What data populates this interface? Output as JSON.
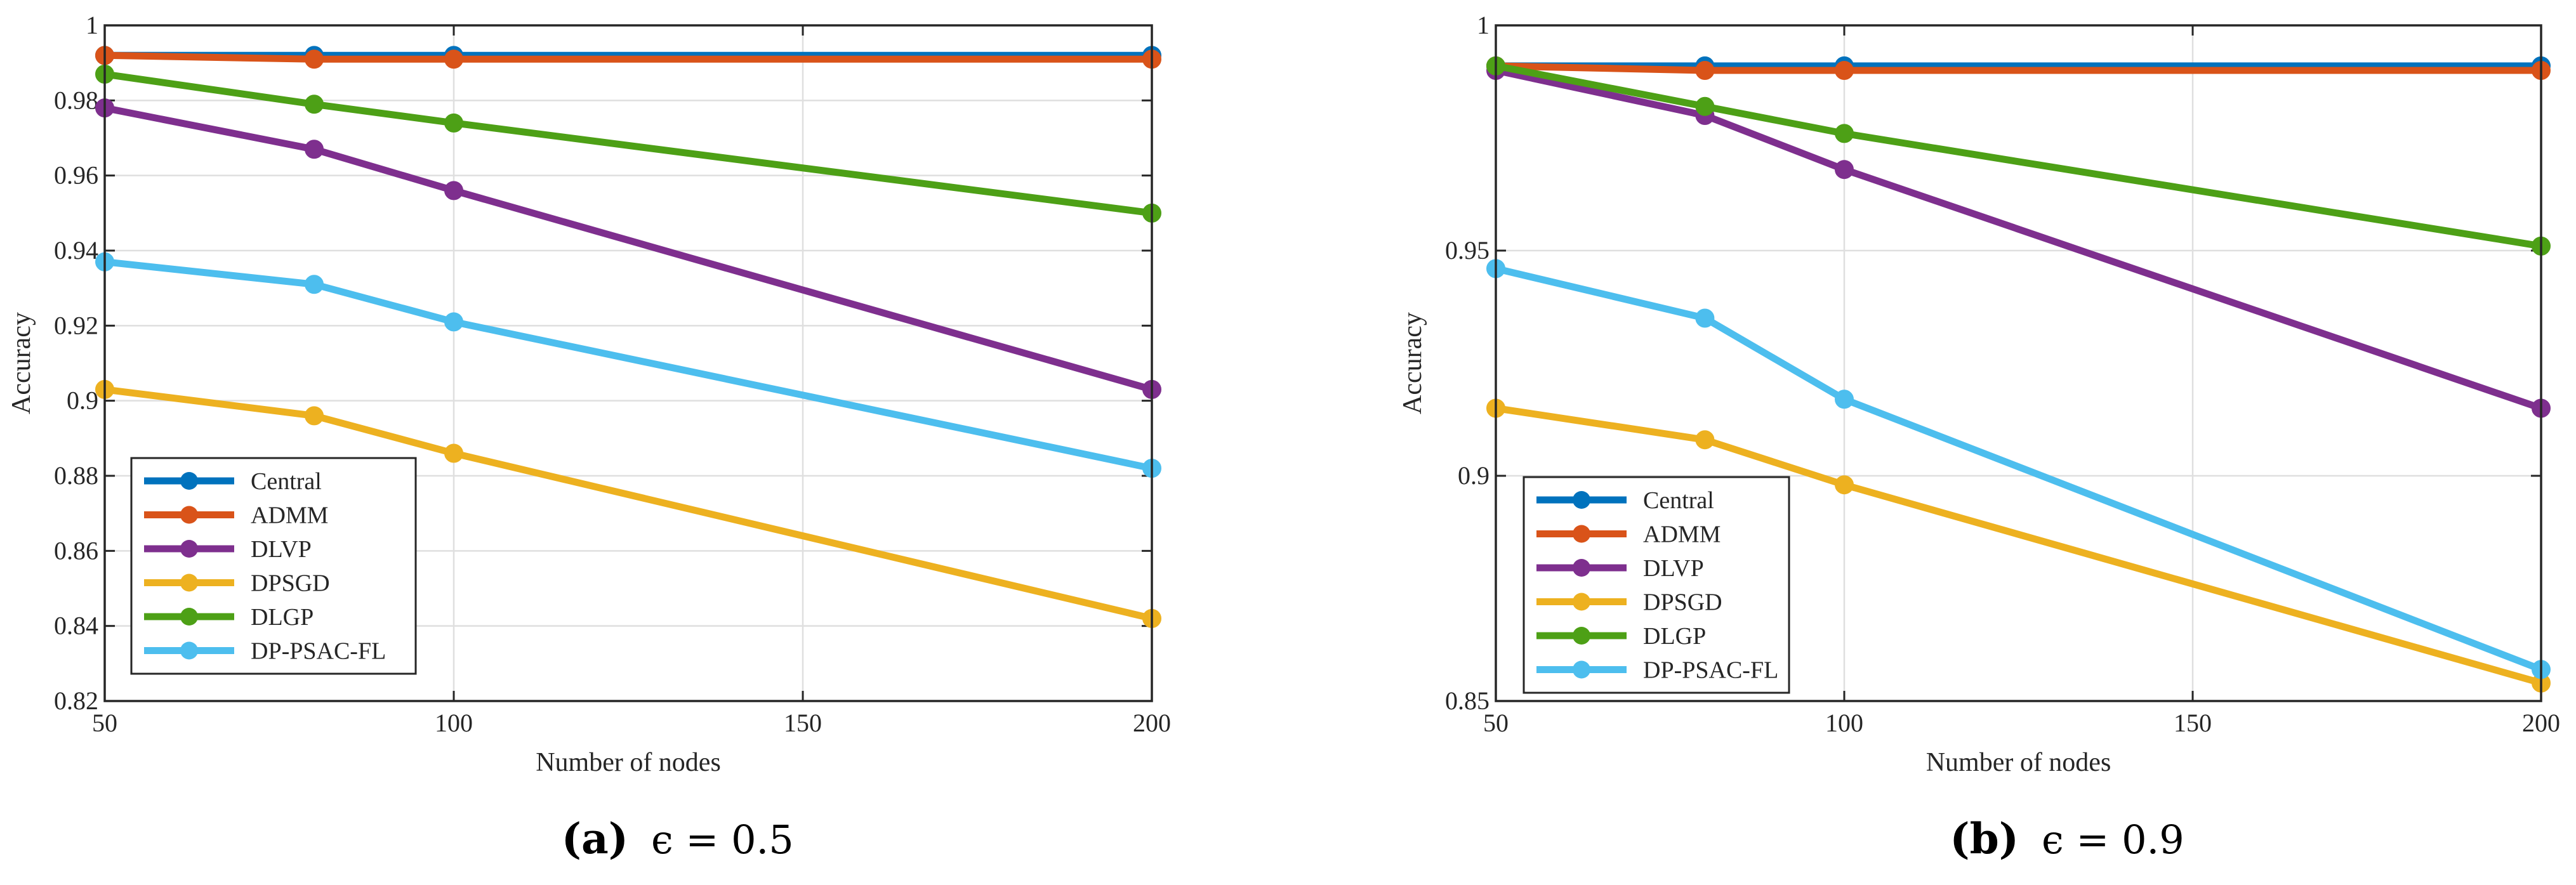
{
  "chart_data": [
    {
      "type": "line",
      "title": "",
      "xlabel": "Number of nodes",
      "ylabel": "Accuracy",
      "xlim": [
        50,
        200
      ],
      "ylim": [
        0.82,
        1
      ],
      "xticks": [
        50,
        100,
        150,
        200
      ],
      "xtick_labels": [
        "50",
        "100",
        "150",
        "200"
      ],
      "yticks": [
        0.82,
        0.84,
        0.86,
        0.88,
        0.9,
        0.92,
        0.94,
        0.96,
        0.98,
        1
      ],
      "ytick_labels": [
        "0.82",
        "0.84",
        "0.86",
        "0.88",
        "0.9",
        "0.92",
        "0.94",
        "0.96",
        "0.98",
        "1"
      ],
      "x": [
        50,
        80,
        100,
        200
      ],
      "grid": true,
      "legend_position": "bottom-left",
      "caption": {
        "letter": "(a)",
        "math": "ϵ = 0.5"
      },
      "series": [
        {
          "name": "Central",
          "color": "#0072BD",
          "values": [
            0.992,
            0.992,
            0.992,
            0.992
          ]
        },
        {
          "name": "ADMM",
          "color": "#D95319",
          "values": [
            0.992,
            0.991,
            0.991,
            0.991
          ]
        },
        {
          "name": "DLVP",
          "color": "#7E2F8E",
          "values": [
            0.978,
            0.967,
            0.956,
            0.903
          ]
        },
        {
          "name": "DPSGD",
          "color": "#EDB120",
          "values": [
            0.903,
            0.896,
            0.886,
            0.842
          ]
        },
        {
          "name": "DLGP",
          "color": "#4DA016",
          "values": [
            0.987,
            0.979,
            0.974,
            0.95
          ]
        },
        {
          "name": "DP-PSAC-FL",
          "color": "#4DBEEE",
          "values": [
            0.937,
            0.931,
            0.921,
            0.882
          ]
        }
      ]
    },
    {
      "type": "line",
      "title": "",
      "xlabel": "Number of nodes",
      "ylabel": "Accuracy",
      "xlim": [
        50,
        200
      ],
      "ylim": [
        0.85,
        1
      ],
      "xticks": [
        50,
        100,
        150,
        200
      ],
      "xtick_labels": [
        "50",
        "100",
        "150",
        "200"
      ],
      "yticks": [
        0.85,
        0.9,
        0.95,
        1
      ],
      "ytick_labels": [
        "0.85",
        "0.9",
        "0.95",
        "1"
      ],
      "x": [
        50,
        80,
        100,
        200
      ],
      "grid": true,
      "legend_position": "bottom-left",
      "caption": {
        "letter": "(b)",
        "math": "ϵ = 0.9"
      },
      "series": [
        {
          "name": "Central",
          "color": "#0072BD",
          "values": [
            0.991,
            0.991,
            0.991,
            0.991
          ]
        },
        {
          "name": "ADMM",
          "color": "#D95319",
          "values": [
            0.991,
            0.99,
            0.99,
            0.99
          ]
        },
        {
          "name": "DLVP",
          "color": "#7E2F8E",
          "values": [
            0.99,
            0.98,
            0.968,
            0.915
          ]
        },
        {
          "name": "DPSGD",
          "color": "#EDB120",
          "values": [
            0.915,
            0.908,
            0.898,
            0.854
          ]
        },
        {
          "name": "DLGP",
          "color": "#4DA016",
          "values": [
            0.991,
            0.982,
            0.976,
            0.951
          ]
        },
        {
          "name": "DP-PSAC-FL",
          "color": "#4DBEEE",
          "values": [
            0.946,
            0.935,
            0.917,
            0.857
          ]
        }
      ]
    }
  ]
}
